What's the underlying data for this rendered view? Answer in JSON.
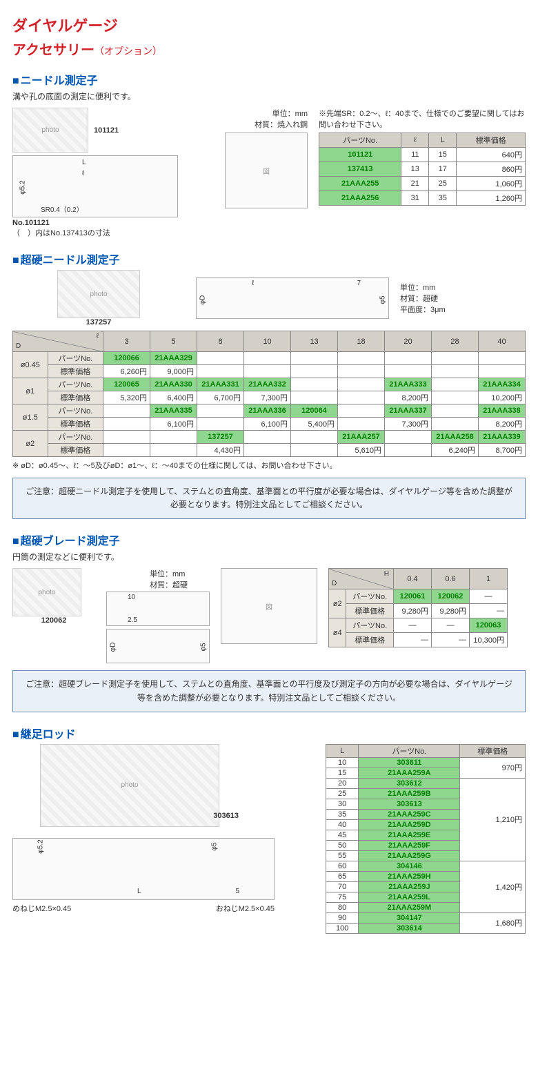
{
  "colors": {
    "title_red": "#d2232a",
    "section_blue": "#0056b0",
    "header_gray": "#d4d0c8",
    "row_gray": "#e8e4dc",
    "highlight_green": "#8fd68f",
    "partno_green": "#008000",
    "border": "#888888",
    "caution_bg": "#eaf0f7",
    "caution_border": "#6a8db8"
  },
  "page_title": "ダイヤルゲージ",
  "page_subtitle": "アクセサリー",
  "page_subtitle_option": "（オプション）",
  "needle": {
    "title": "ニードル測定子",
    "desc": "溝や孔の底面の測定に便利です。",
    "photo_label": "101121",
    "drawing_labels": {
      "L": "L",
      "l": "ℓ",
      "dia": "φ5.2",
      "sr": "SR0.4（0.2）"
    },
    "drawing_caption1": "No.101121",
    "drawing_caption2": "（　）内はNo.137413の寸法",
    "unit_line1": "単位：mm",
    "unit_line2": "材質：焼入れ鋼",
    "note": "※先端SR：0.2〜、ℓ：40まで、仕様でのご要望に関してはお問い合わせ下さい。",
    "table": {
      "headers": [
        "パーツNo.",
        "ℓ",
        "L",
        "標準価格"
      ],
      "rows": [
        {
          "pn": "101121",
          "l": "11",
          "L": "15",
          "price": "640円"
        },
        {
          "pn": "137413",
          "l": "13",
          "L": "17",
          "price": "860円"
        },
        {
          "pn": "21AAA255",
          "l": "21",
          "L": "25",
          "price": "1,060円"
        },
        {
          "pn": "21AAA256",
          "l": "31",
          "L": "35",
          "price": "1,260円"
        }
      ]
    }
  },
  "hard_needle": {
    "title": "超硬ニードル測定子",
    "photo_label": "137257",
    "unit_line1": "単位：mm",
    "unit_line2": "材質：超硬",
    "unit_line3": "平面度：3μm",
    "table": {
      "D_label": "D",
      "l_label": "ℓ",
      "l_values": [
        "3",
        "5",
        "8",
        "10",
        "13",
        "18",
        "20",
        "28",
        "40"
      ],
      "rows": [
        {
          "D": "ø0.45",
          "pn_label": "パーツNo.",
          "pn": [
            "120066",
            "21AAA329",
            "",
            "",
            "",
            "",
            "",
            "",
            ""
          ],
          "price_label": "標準価格",
          "price": [
            "6,260円",
            "9,000円",
            "",
            "",
            "",
            "",
            "",
            "",
            ""
          ]
        },
        {
          "D": "ø1",
          "pn_label": "パーツNo.",
          "pn": [
            "120065",
            "21AAA330",
            "21AAA331",
            "21AAA332",
            "",
            "",
            "21AAA333",
            "",
            "21AAA334"
          ],
          "price_label": "標準価格",
          "price": [
            "5,320円",
            "6,400円",
            "6,700円",
            "7,300円",
            "",
            "",
            "8,200円",
            "",
            "10,200円"
          ]
        },
        {
          "D": "ø1.5",
          "pn_label": "パーツNo.",
          "pn": [
            "",
            "21AAA335",
            "",
            "21AAA336",
            "120064",
            "",
            "21AAA337",
            "",
            "21AAA338"
          ],
          "price_label": "標準価格",
          "price": [
            "",
            "6,100円",
            "",
            "6,100円",
            "5,400円",
            "",
            "7,300円",
            "",
            "8,200円"
          ]
        },
        {
          "D": "ø2",
          "pn_label": "パーツNo.",
          "pn": [
            "",
            "",
            "137257",
            "",
            "",
            "21AAA257",
            "",
            "21AAA258",
            "21AAA339"
          ],
          "price_label": "標準価格",
          "price": [
            "",
            "",
            "4,430円",
            "",
            "",
            "5,610円",
            "",
            "6,240円",
            "8,700円"
          ]
        }
      ]
    },
    "note": "※ øD：ø0.45〜、ℓ：〜5及びøD：ø1〜、ℓ：〜40までの仕様に関しては、お問い合わせ下さい。",
    "caution": "ご注意：超硬ニードル測定子を使用して、ステムとの直角度、基準面との平行度が必要な場合は、ダイヤルゲージ等を含めた調整が必要となります。特別注文品としてご相談ください。"
  },
  "blade": {
    "title": "超硬ブレード測定子",
    "desc": "円筒の測定などに便利です。",
    "photo_label": "120062",
    "unit_line1": "単位：mm",
    "unit_line2": "材質：超硬",
    "table": {
      "D_label": "D",
      "H_label": "H",
      "H_values": [
        "0.4",
        "0.6",
        "1"
      ],
      "rows": [
        {
          "D": "ø2",
          "pn_label": "パーツNo.",
          "pn": [
            "120061",
            "120062",
            "—"
          ],
          "price_label": "標準価格",
          "price": [
            "9,280円",
            "9,280円",
            "—"
          ]
        },
        {
          "D": "ø4",
          "pn_label": "パーツNo.",
          "pn": [
            "—",
            "—",
            "120063"
          ],
          "price_label": "標準価格",
          "price": [
            "—",
            "—",
            "10,300円"
          ]
        }
      ]
    },
    "caution": "ご注意：超硬ブレード測定子を使用して、ステムとの直角度、基準面との平行度及び測定子の方向が必要な場合は、ダイヤルゲージ等を含めた調整が必要となります。特別注文品としてご相談ください。"
  },
  "rod": {
    "title": "継足ロッド",
    "photo_label": "303613",
    "drawing_labels": {
      "dia1": "φ5.2",
      "dia2": "φ5",
      "L": "L",
      "five": "5",
      "female": "めねじM2.5×0.45",
      "male": "おねじM2.5×0.45"
    },
    "table": {
      "headers": [
        "L",
        "パーツNo.",
        "標準価格"
      ],
      "groups": [
        {
          "price": "970円",
          "rows": [
            {
              "L": "10",
              "pn": "303611"
            },
            {
              "L": "15",
              "pn": "21AAA259A"
            }
          ]
        },
        {
          "price": "1,210円",
          "rows": [
            {
              "L": "20",
              "pn": "303612"
            },
            {
              "L": "25",
              "pn": "21AAA259B"
            },
            {
              "L": "30",
              "pn": "303613"
            },
            {
              "L": "35",
              "pn": "21AAA259C"
            },
            {
              "L": "40",
              "pn": "21AAA259D"
            },
            {
              "L": "45",
              "pn": "21AAA259E"
            },
            {
              "L": "50",
              "pn": "21AAA259F"
            },
            {
              "L": "55",
              "pn": "21AAA259G"
            }
          ]
        },
        {
          "price": "1,420円",
          "rows": [
            {
              "L": "60",
              "pn": "304146"
            },
            {
              "L": "65",
              "pn": "21AAA259H"
            },
            {
              "L": "70",
              "pn": "21AAA259J"
            },
            {
              "L": "75",
              "pn": "21AAA259L"
            },
            {
              "L": "80",
              "pn": "21AAA259M"
            }
          ]
        },
        {
          "price": "1,680円",
          "rows": [
            {
              "L": "90",
              "pn": "304147"
            },
            {
              "L": "100",
              "pn": "303614"
            }
          ]
        }
      ]
    }
  }
}
